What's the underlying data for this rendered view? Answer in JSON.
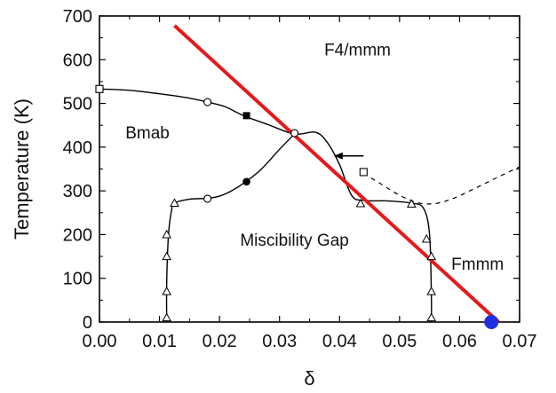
{
  "chart_data": {
    "type": "scatter",
    "xlabel": "δ",
    "ylabel": "Temperature (K)",
    "xlim": [
      0.0,
      0.07
    ],
    "ylim": [
      0,
      700
    ],
    "x_ticks": [
      "0.00",
      "0.01",
      "0.02",
      "0.03",
      "0.04",
      "0.05",
      "0.06",
      "0.07"
    ],
    "y_ticks": [
      "0",
      "100",
      "200",
      "300",
      "400",
      "500",
      "600",
      "700"
    ],
    "grid": false,
    "region_labels": [
      {
        "text": "F4/mmm",
        "x": 0.043,
        "y": 610
      },
      {
        "text": "Bmab",
        "x": 0.008,
        "y": 420
      },
      {
        "text": "Miscibility Gap",
        "x": 0.0325,
        "y": 175
      },
      {
        "text": "Fmmm",
        "x": 0.063,
        "y": 120
      }
    ],
    "series": [
      {
        "style": "curve",
        "color": "#000000",
        "points": [
          [
            0.0,
            533
          ],
          [
            0.005,
            530
          ],
          [
            0.01,
            522
          ],
          [
            0.015,
            512
          ],
          [
            0.018,
            503
          ],
          [
            0.021,
            492
          ],
          [
            0.024,
            472
          ],
          [
            0.028,
            452
          ],
          [
            0.0325,
            430
          ],
          [
            0.036,
            434
          ],
          [
            0.038,
            410
          ],
          [
            0.04,
            360
          ],
          [
            0.042,
            290
          ],
          [
            0.044,
            278
          ],
          [
            0.048,
            277
          ],
          [
            0.052,
            272
          ],
          [
            0.054,
            260
          ],
          [
            0.055,
            200
          ],
          [
            0.0553,
            60
          ],
          [
            0.0553,
            0
          ]
        ]
      },
      {
        "style": "curve",
        "color": "#000000",
        "points": [
          [
            0.0112,
            0
          ],
          [
            0.0112,
            90
          ],
          [
            0.0115,
            200
          ],
          [
            0.012,
            255
          ],
          [
            0.0125,
            272
          ],
          [
            0.015,
            281
          ],
          [
            0.018,
            283
          ],
          [
            0.02,
            288
          ],
          [
            0.022,
            300
          ],
          [
            0.0245,
            322
          ],
          [
            0.027,
            350
          ],
          [
            0.03,
            395
          ],
          [
            0.0325,
            430
          ]
        ]
      },
      {
        "style": "dashed",
        "color": "#000000",
        "points": [
          [
            0.044,
            340
          ],
          [
            0.047,
            315
          ],
          [
            0.05,
            290
          ],
          [
            0.053,
            273
          ],
          [
            0.056,
            271
          ],
          [
            0.059,
            283
          ],
          [
            0.062,
            302
          ],
          [
            0.065,
            322
          ],
          [
            0.068,
            342
          ],
          [
            0.07,
            355
          ]
        ]
      },
      {
        "style": "markers",
        "marker": "square-open",
        "points": [
          [
            0.0,
            533
          ],
          [
            0.044,
            343
          ]
        ]
      },
      {
        "style": "markers",
        "marker": "circle-open",
        "points": [
          [
            0.018,
            503
          ],
          [
            0.018,
            282
          ],
          [
            0.0325,
            432
          ]
        ]
      },
      {
        "style": "markers",
        "marker": "square-filled",
        "points": [
          [
            0.0245,
            472
          ]
        ]
      },
      {
        "style": "markers",
        "marker": "circle-filled",
        "points": [
          [
            0.0245,
            321
          ]
        ]
      },
      {
        "style": "markers",
        "marker": "triangle-open",
        "points": [
          [
            0.0112,
            10
          ],
          [
            0.0112,
            70
          ],
          [
            0.0112,
            150
          ],
          [
            0.0112,
            200
          ],
          [
            0.0125,
            272
          ],
          [
            0.0435,
            271
          ],
          [
            0.052,
            270
          ],
          [
            0.0545,
            190
          ],
          [
            0.0553,
            150
          ],
          [
            0.0553,
            70
          ],
          [
            0.0553,
            10
          ]
        ]
      },
      {
        "style": "line",
        "color": "#e31a1c",
        "points": [
          [
            0.0125,
            678
          ],
          [
            0.0665,
            0
          ]
        ]
      },
      {
        "style": "markers",
        "marker": "circle-filled-blue",
        "color": "#1f2fe0",
        "points": [
          [
            0.0653,
            0
          ]
        ]
      }
    ],
    "annotations": [
      {
        "type": "arrow",
        "from": [
          0.044,
          380
        ],
        "to": [
          0.0392,
          380
        ]
      }
    ]
  }
}
